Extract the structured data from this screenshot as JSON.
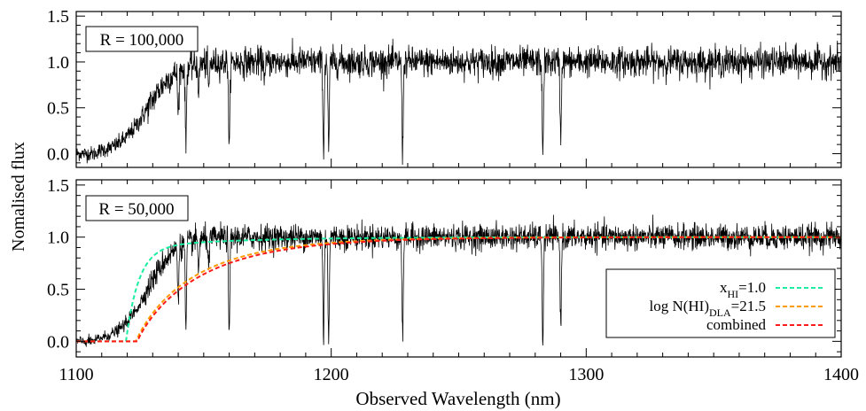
{
  "chart_data": {
    "type": "line",
    "shared_x": {
      "label": "Observed Wavelength (nm)",
      "xlim": [
        1100,
        1400
      ],
      "ticks": [
        1100,
        1200,
        1300,
        1400
      ]
    },
    "ylabel": "Nomalised flux",
    "panels": [
      {
        "id": "top",
        "label": "R = 100,000",
        "ylim": [
          -0.15,
          1.55
        ],
        "yticks": [
          "0.0",
          "0.5",
          "1.0",
          "1.5"
        ],
        "spectrum": {
          "color": "#000000",
          "noise_sigma_continuum": 0.08,
          "noise_sigma_trough": 0.04,
          "onset_center": 1128,
          "onset_width": 5.5,
          "absorption_lines": [
            {
              "x": 1140,
              "depth": 0.55
            },
            {
              "x": 1143,
              "depth": 0.9
            },
            {
              "x": 1148,
              "depth": 0.3
            },
            {
              "x": 1152,
              "depth": 0.3
            },
            {
              "x": 1160,
              "depth": 1.0
            },
            {
              "x": 1174,
              "depth": 0.2
            },
            {
              "x": 1197,
              "depth": 1.0
            },
            {
              "x": 1199,
              "depth": 1.0
            },
            {
              "x": 1228,
              "depth": 1.0
            },
            {
              "x": 1283,
              "depth": 1.05
            },
            {
              "x": 1290,
              "depth": 0.85
            }
          ]
        }
      },
      {
        "id": "bottom",
        "label": "R = 50,000",
        "ylim": [
          -0.15,
          1.55
        ],
        "yticks": [
          "0.0",
          "0.5",
          "1.0",
          "1.5"
        ],
        "spectrum": {
          "color": "#000000",
          "noise_sigma_continuum": 0.06,
          "noise_sigma_trough": 0.025,
          "onset_center": 1128,
          "onset_width": 5.5,
          "absorption_lines": [
            {
              "x": 1140,
              "depth": 0.55
            },
            {
              "x": 1143,
              "depth": 0.9
            },
            {
              "x": 1148,
              "depth": 0.3
            },
            {
              "x": 1152,
              "depth": 0.3
            },
            {
              "x": 1160,
              "depth": 1.0
            },
            {
              "x": 1197,
              "depth": 1.0
            },
            {
              "x": 1199,
              "depth": 1.0
            },
            {
              "x": 1228,
              "depth": 1.0
            },
            {
              "x": 1283,
              "depth": 1.05
            },
            {
              "x": 1290,
              "depth": 0.85
            }
          ]
        },
        "models": [
          {
            "name": "x_HI=1.0",
            "label_main": "x",
            "label_sub": "HI",
            "label_rest": "=1.0",
            "color": "#1aeea0",
            "x_start": 1119.5,
            "saturate_at": 1216
          },
          {
            "name": "log N(HI)_DLA=21.5",
            "label_main": "log N(HI)",
            "label_sub": "DLA",
            "label_rest": "=21.5",
            "color": "#ff9a00",
            "x_start": 1123.5,
            "saturate_at": 1255
          },
          {
            "name": "combined",
            "label_main": "combined",
            "label_sub": "",
            "label_rest": "",
            "color": "#ff1a1a",
            "x_start": 1124,
            "saturate_at": 1265
          }
        ]
      }
    ]
  }
}
